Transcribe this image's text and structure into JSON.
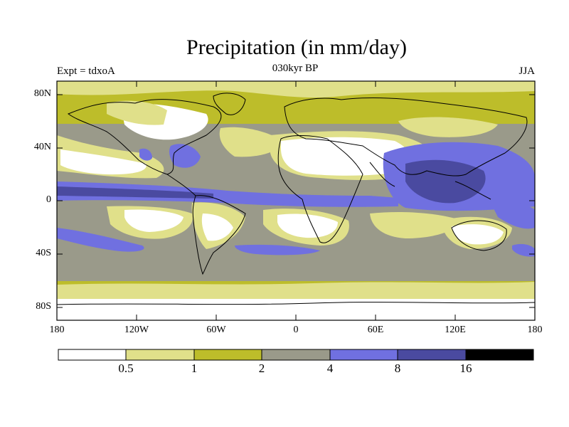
{
  "title": "Precipitation (in mm/day)",
  "subtitle_left": "Expt = tdxoA",
  "subtitle_center": "030kyr BP",
  "subtitle_right": "JJA",
  "lat_labels": [
    "80N",
    "40N",
    "0",
    "40S",
    "80S"
  ],
  "lon_labels": [
    "180",
    "120W",
    "60W",
    "0",
    "60E",
    "120E",
    "180"
  ],
  "colorbar": {
    "colors": [
      "#ffffff",
      "#e0e08a",
      "#bdbd2a",
      "#9a9a8a",
      "#7070e0",
      "#4a4aa0",
      "#000000"
    ],
    "labels": [
      "0.5",
      "1",
      "2",
      "4",
      "8",
      "16"
    ]
  }
}
